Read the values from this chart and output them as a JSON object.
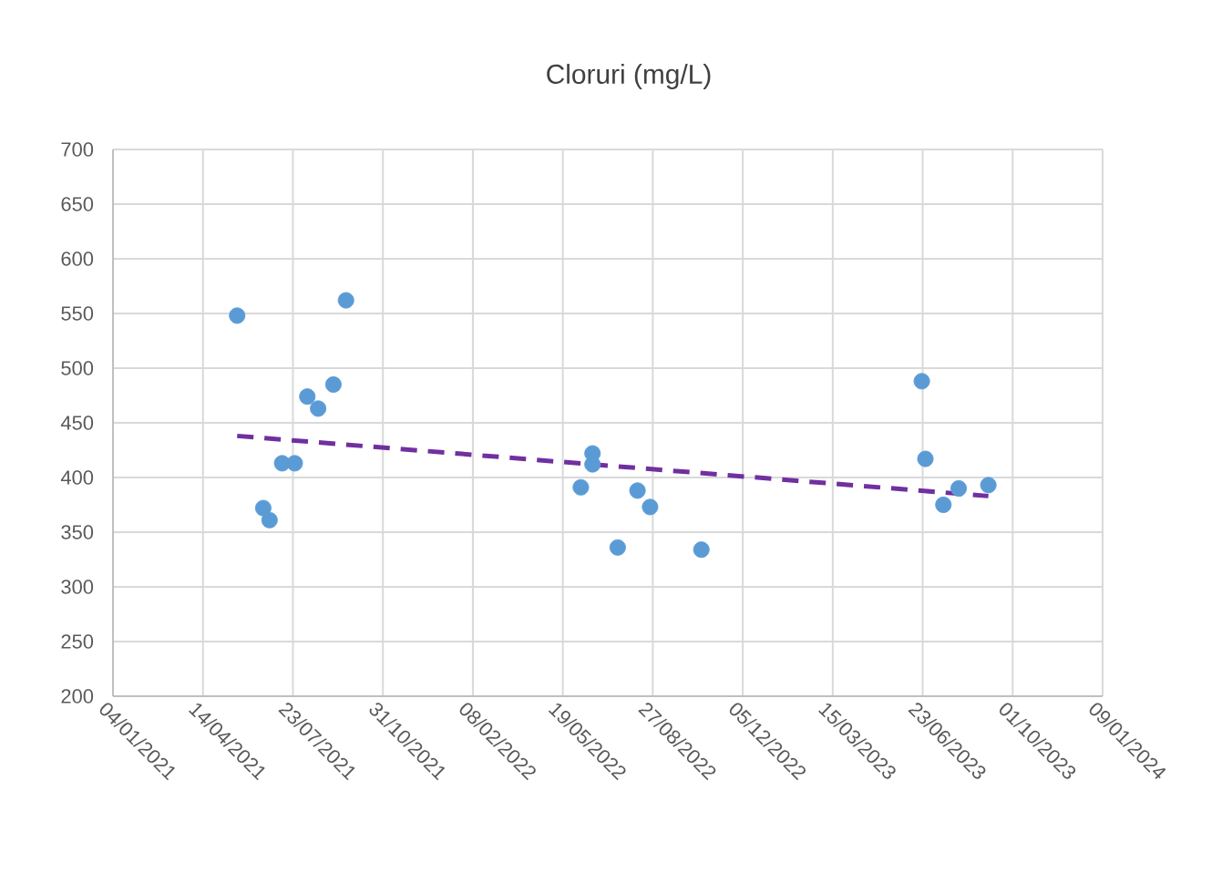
{
  "chart_data": {
    "type": "scatter",
    "title": "Cloruri (mg/L)",
    "xlim": [
      "2021-01-04",
      "2024-01-09"
    ],
    "xticks": [
      {
        "value": "2021-01-04",
        "label": "04/01/2021"
      },
      {
        "value": "2021-04-14",
        "label": "14/04/2021"
      },
      {
        "value": "2021-07-23",
        "label": "23/07/2021"
      },
      {
        "value": "2021-10-31",
        "label": "31/10/2021"
      },
      {
        "value": "2022-02-08",
        "label": "08/02/2022"
      },
      {
        "value": "2022-05-19",
        "label": "19/05/2022"
      },
      {
        "value": "2022-08-27",
        "label": "27/08/2022"
      },
      {
        "value": "2022-12-05",
        "label": "05/12/2022"
      },
      {
        "value": "2023-03-15",
        "label": "15/03/2023"
      },
      {
        "value": "2023-06-23",
        "label": "23/06/2023"
      },
      {
        "value": "2023-10-01",
        "label": "01/10/2023"
      },
      {
        "value": "2024-01-09",
        "label": "09/01/2024"
      }
    ],
    "ylim": [
      200,
      700
    ],
    "yticks": [
      200,
      250,
      300,
      350,
      400,
      450,
      500,
      550,
      600,
      650,
      700
    ],
    "grid": true,
    "series": [
      {
        "color": "#5b9bd5",
        "marker": "circle",
        "x": [
          "2021-05-22",
          "2021-06-20",
          "2021-06-27",
          "2021-07-11",
          "2021-07-25",
          "2021-08-08",
          "2021-08-20",
          "2021-09-06",
          "2021-09-20",
          "2022-06-08",
          "2022-06-21",
          "2022-06-21",
          "2022-07-19",
          "2022-08-10",
          "2022-08-24",
          "2022-10-20",
          "2023-06-22",
          "2023-06-26",
          "2023-07-16",
          "2023-08-02",
          "2023-09-04"
        ],
        "values": [
          548,
          372,
          361,
          413,
          413,
          474,
          463,
          485,
          562,
          391,
          422,
          412,
          336,
          388,
          373,
          334,
          488,
          417,
          375,
          390,
          393
        ]
      },
      {
        "type": "line",
        "color": "#7030a0",
        "line_style": "dashed",
        "marker": "none",
        "x": [
          "2021-05-22",
          "2023-09-04"
        ],
        "values": [
          438,
          383
        ]
      }
    ]
  }
}
